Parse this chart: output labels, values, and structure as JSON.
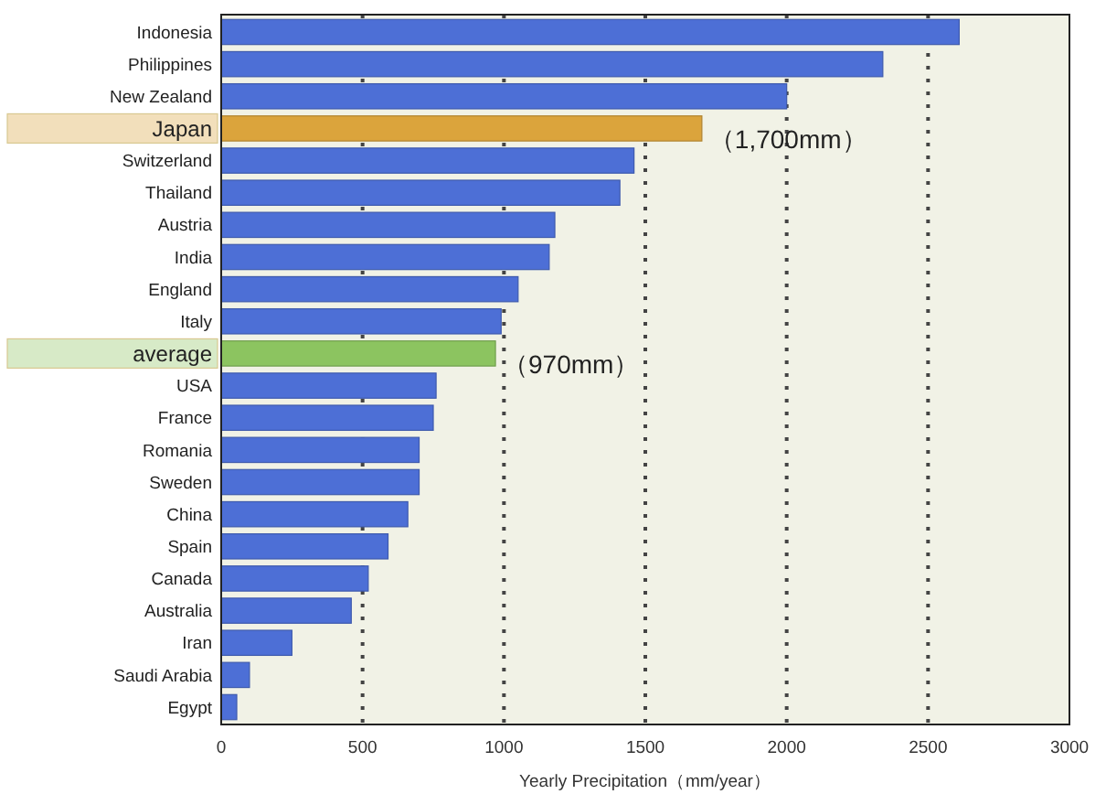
{
  "chart_data": {
    "type": "bar",
    "orientation": "horizontal",
    "xlabel": "Yearly Precipitation（mm/year）",
    "categories": [
      "Indonesia",
      "Philippines",
      "New Zealand",
      "Japan",
      "Switzerland",
      "Thailand",
      "Austria",
      "India",
      "England",
      "Italy",
      "average",
      "USA",
      "France",
      "Romania",
      "Sweden",
      "China",
      "Spain",
      "Canada",
      "Australia",
      "Iran",
      "Saudi Arabia",
      "Egypt"
    ],
    "values": [
      2610,
      2340,
      2000,
      1700,
      1460,
      1410,
      1180,
      1160,
      1050,
      990,
      970,
      760,
      750,
      700,
      700,
      660,
      590,
      520,
      460,
      250,
      100,
      55
    ],
    "colors": [
      "#4d6fd6",
      "#4d6fd6",
      "#4d6fd6",
      "#dba43c",
      "#4d6fd6",
      "#4d6fd6",
      "#4d6fd6",
      "#4d6fd6",
      "#4d6fd6",
      "#4d6fd6",
      "#8cc460",
      "#4d6fd6",
      "#4d6fd6",
      "#4d6fd6",
      "#4d6fd6",
      "#4d6fd6",
      "#4d6fd6",
      "#4d6fd6",
      "#4d6fd6",
      "#4d6fd6",
      "#4d6fd6",
      "#4d6fd6"
    ],
    "xlim": [
      0,
      3000
    ],
    "xticks": [
      0,
      500,
      1000,
      1500,
      2000,
      2500,
      3000
    ],
    "grid": "x",
    "annotations": [
      {
        "text": "（1,700mm）",
        "x": 1700,
        "y": "Japan"
      },
      {
        "text": "（970mm）",
        "x": 970,
        "y": "average"
      }
    ]
  }
}
